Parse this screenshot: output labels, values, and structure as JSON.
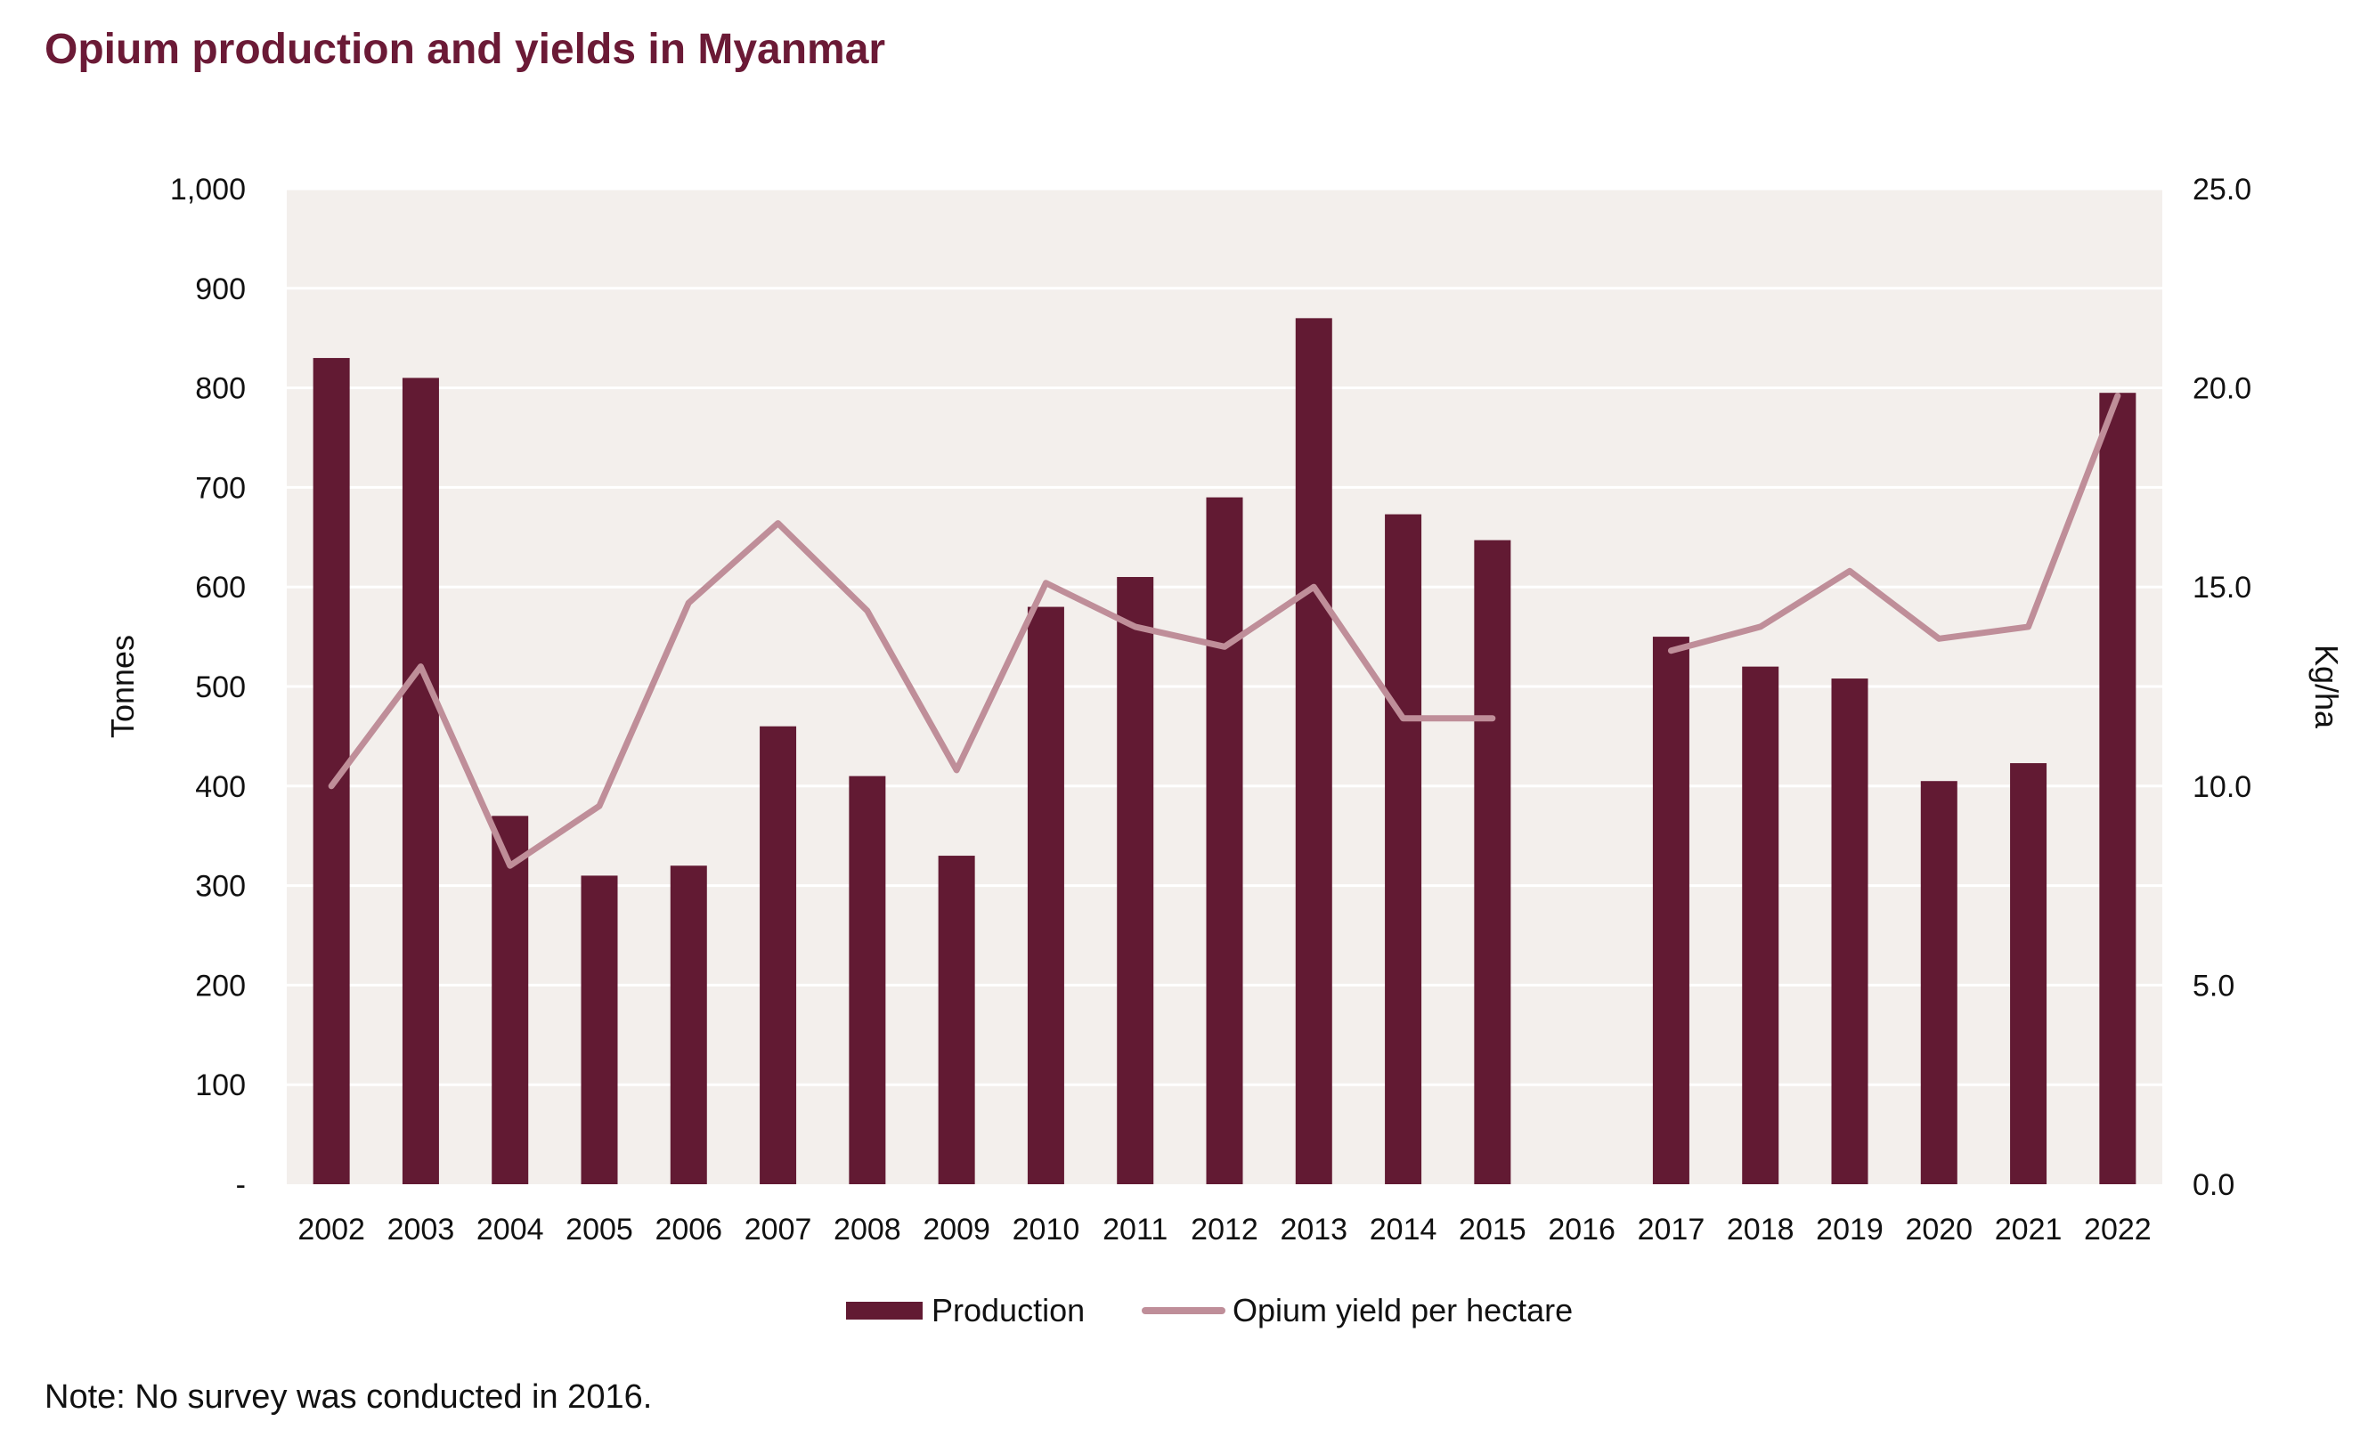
{
  "title": "Opium production and yields in Myanmar",
  "note": "Note: No survey was conducted in 2016.",
  "colors": {
    "plot_background": "#f3efec",
    "bar": "#621a33",
    "line": "#bf8e99",
    "title": "#6b1a36",
    "gridline": "#ffffff"
  },
  "chart_data": {
    "type": "bar",
    "title": "Opium production and yields in Myanmar",
    "categories": [
      "2002",
      "2003",
      "2004",
      "2005",
      "2006",
      "2007",
      "2008",
      "2009",
      "2010",
      "2011",
      "2012",
      "2013",
      "2014",
      "2015",
      "2016",
      "2017",
      "2018",
      "2019",
      "2020",
      "2021",
      "2022"
    ],
    "series": [
      {
        "name": "Production",
        "type": "bar",
        "axis": "left",
        "values": [
          830,
          810,
          370,
          310,
          320,
          460,
          410,
          330,
          580,
          610,
          690,
          870,
          673,
          647,
          null,
          550,
          520,
          508,
          405,
          423,
          795
        ]
      },
      {
        "name": "Opium yield per hectare",
        "type": "line",
        "axis": "right",
        "values": [
          10.0,
          13.0,
          8.0,
          9.5,
          14.6,
          16.6,
          14.4,
          10.4,
          15.1,
          14.0,
          13.5,
          15.0,
          11.7,
          11.7,
          null,
          13.4,
          14.0,
          15.4,
          13.7,
          14.0,
          19.8
        ]
      }
    ],
    "ylabel": "Tonnes",
    "y2label": "Kg/ha",
    "ylim": [
      0,
      1000
    ],
    "y2lim": [
      0,
      25
    ],
    "yticks": [
      "-",
      "100",
      "200",
      "300",
      "400",
      "500",
      "600",
      "700",
      "800",
      "900",
      "1,000"
    ],
    "y2ticks": [
      "0.0",
      "5.0",
      "10.0",
      "15.0",
      "20.0",
      "25.0"
    ],
    "legend": [
      "Production",
      "Opium yield per hectare"
    ],
    "legend_position": "bottom",
    "grid": true
  }
}
